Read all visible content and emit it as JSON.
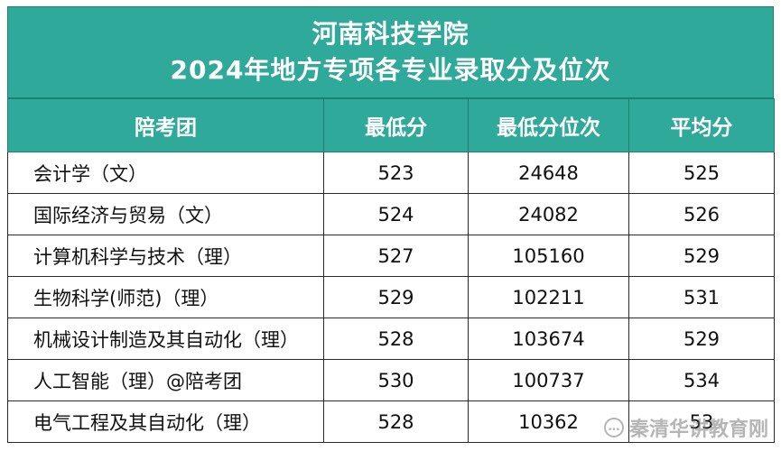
{
  "title": {
    "line1": "河南科技学院",
    "line2": "2024年地方专项各专业录取分及位次"
  },
  "table": {
    "headers": [
      "陪考团",
      "最低分",
      "最低分位次",
      "平均分"
    ],
    "rows": [
      [
        "会计学（文）",
        "523",
        "24648",
        "525"
      ],
      [
        "国际经济与贸易（文）",
        "524",
        "24082",
        "526"
      ],
      [
        "计算机科学与技术（理）",
        "527",
        "105160",
        "529"
      ],
      [
        "生物科学(师范)（理）",
        "529",
        "102211",
        "531"
      ],
      [
        "机械设计制造及其自动化（理）",
        "528",
        "103674",
        "529"
      ],
      [
        "人工智能（理）@陪考团",
        "530",
        "100737",
        "534"
      ],
      [
        "电气工程及其自动化（理）",
        "528",
        "10362",
        "53"
      ]
    ]
  },
  "watermark": {
    "text": "秦清华讲教育刚",
    "icon": "chat-bubble-icon"
  },
  "colors": {
    "header_bg": "#2fa99a",
    "header_text": "#ffffff"
  }
}
